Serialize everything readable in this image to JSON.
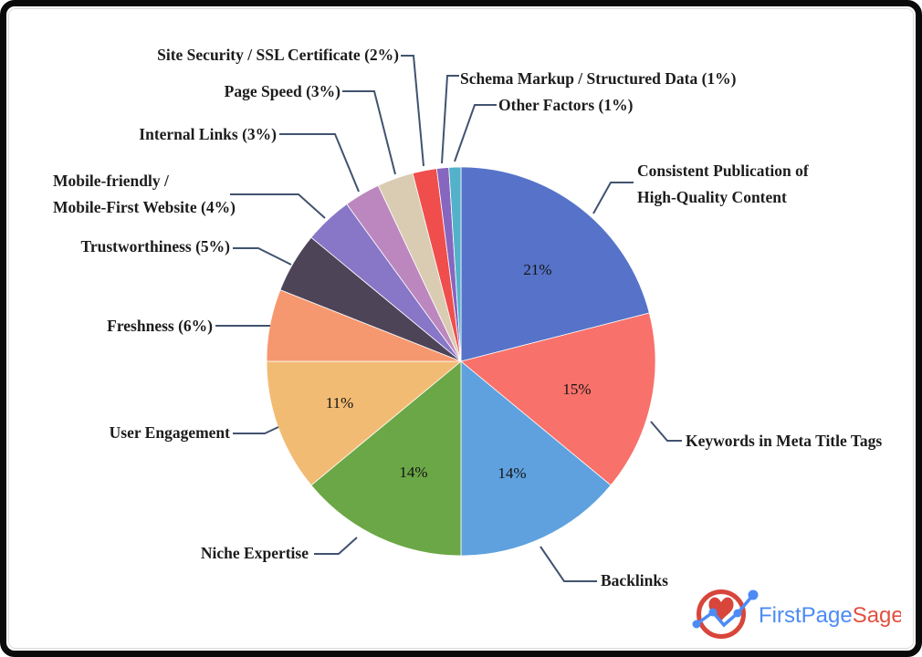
{
  "chart_data": {
    "type": "pie",
    "title": "",
    "unit": "%",
    "legend_position": "none",
    "start_angle_deg": -90,
    "direction": "clockwise",
    "leader_line_color": "#41536F",
    "label_text_color": "#1c1c1c",
    "series": [
      {
        "label": "Consistent Publication of High-Quality Content",
        "value": 21,
        "color": "#5673C9",
        "inside_label": "21%",
        "callout_lines": [
          "Consistent Publication of",
          "High-Quality Content"
        ]
      },
      {
        "label": "Keywords in Meta Title Tags",
        "value": 15,
        "color": "#F8716A",
        "inside_label": "15%",
        "callout_lines": [
          "Keywords in Meta Title Tags"
        ]
      },
      {
        "label": "Backlinks",
        "value": 14,
        "color": "#5EA1DE",
        "inside_label": "14%",
        "callout_lines": [
          "Backlinks"
        ]
      },
      {
        "label": "Niche Expertise",
        "value": 14,
        "color": "#6BA746",
        "inside_label": "14%",
        "callout_lines": [
          "Niche Expertise"
        ]
      },
      {
        "label": "User Engagement",
        "value": 11,
        "color": "#F2BB74",
        "inside_label": "11%",
        "callout_lines": [
          "User Engagement"
        ]
      },
      {
        "label": "Freshness",
        "value": 6,
        "color": "#F6986F",
        "callout_lines": [
          "Freshness (6%)"
        ]
      },
      {
        "label": "Trustworthiness",
        "value": 5,
        "color": "#4D4458",
        "callout_lines": [
          "Trustworthiness (5%)"
        ]
      },
      {
        "label": "Mobile-friendly / Mobile-First Website",
        "value": 4,
        "color": "#8876C7",
        "callout_lines": [
          "Mobile-friendly /",
          "Mobile-First Website (4%)"
        ]
      },
      {
        "label": "Internal Links",
        "value": 3,
        "color": "#BC87BE",
        "callout_lines": [
          "Internal Links (3%)"
        ]
      },
      {
        "label": "Page Speed",
        "value": 3,
        "color": "#D9CCB2",
        "callout_lines": [
          "Page Speed (3%)"
        ]
      },
      {
        "label": "Site Security / SSL Certificate",
        "value": 2,
        "color": "#EF4E4C",
        "callout_lines": [
          "Site Security / SSL Certificate (2%)"
        ]
      },
      {
        "label": "Schema Markup / Structured Data",
        "value": 1,
        "color": "#8766BF",
        "callout_lines": [
          "Schema Markup / Structured Data (1%)"
        ]
      },
      {
        "label": "Other Factors",
        "value": 1,
        "color": "#53B2C9",
        "callout_lines": [
          "Other Factors (1%)"
        ]
      }
    ]
  },
  "branding": {
    "logo_text_primary": "FirstPage",
    "logo_text_secondary": "Sage",
    "logo_text_blue": "#4C8BF5",
    "logo_text_red": "#E25041",
    "logo_mark_red": "#D8453A",
    "logo_mark_blue": "#4C8BF5"
  }
}
